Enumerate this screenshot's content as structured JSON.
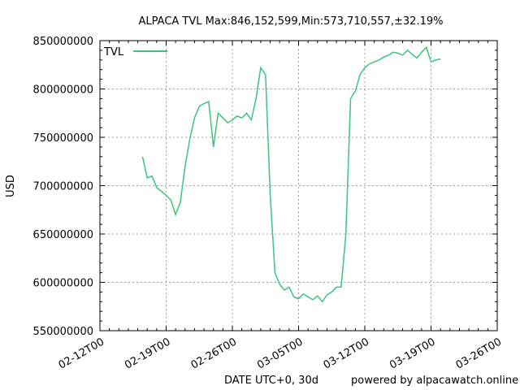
{
  "chart_data": {
    "type": "line",
    "title": "ALPACA TVL Max:846,152,599,Min:573,710,557,±32.19%",
    "xlabel": "DATE UTC+0, 30d",
    "ylabel": "USD",
    "footer": "powered by alpacawatch.online",
    "x_ticks": [
      "02-12T00",
      "02-19T00",
      "02-26T00",
      "03-05T00",
      "03-12T00",
      "03-19T00",
      "03-26T00"
    ],
    "y_ticks": [
      "550000000",
      "600000000",
      "650000000",
      "700000000",
      "750000000",
      "800000000",
      "850000000"
    ],
    "xlim": [
      "2021-02-12",
      "2021-03-26"
    ],
    "ylim": [
      550000000,
      850000000
    ],
    "grid": true,
    "legend": "top-left",
    "series": [
      {
        "name": "TVL",
        "color": "#3cc47c",
        "x": [
          "2021-02-16T12:00",
          "2021-02-17T00:00",
          "2021-02-17T12:00",
          "2021-02-18T00:00",
          "2021-02-18T12:00",
          "2021-02-19T00:00",
          "2021-02-19T12:00",
          "2021-02-20T00:00",
          "2021-02-20T12:00",
          "2021-02-21T00:00",
          "2021-02-21T12:00",
          "2021-02-22T00:00",
          "2021-02-22T12:00",
          "2021-02-23T00:00",
          "2021-02-23T12:00",
          "2021-02-24T00:00",
          "2021-02-24T12:00",
          "2021-02-25T00:00",
          "2021-02-25T12:00",
          "2021-02-26T00:00",
          "2021-02-26T12:00",
          "2021-02-27T00:00",
          "2021-02-27T12:00",
          "2021-02-28T00:00",
          "2021-02-28T12:00",
          "2021-03-01T00:00",
          "2021-03-01T12:00",
          "2021-03-02T00:00",
          "2021-03-02T12:00",
          "2021-03-03T00:00",
          "2021-03-03T12:00",
          "2021-03-04T00:00",
          "2021-03-04T12:00",
          "2021-03-05T00:00",
          "2021-03-05T12:00",
          "2021-03-06T00:00",
          "2021-03-06T12:00",
          "2021-03-07T00:00",
          "2021-03-07T12:00",
          "2021-03-08T00:00",
          "2021-03-08T12:00",
          "2021-03-09T00:00",
          "2021-03-09T12:00",
          "2021-03-10T00:00",
          "2021-03-10T12:00",
          "2021-03-11T00:00",
          "2021-03-11T12:00",
          "2021-03-12T00:00",
          "2021-03-12T12:00",
          "2021-03-13T00:00",
          "2021-03-13T12:00",
          "2021-03-14T00:00",
          "2021-03-14T12:00",
          "2021-03-15T00:00",
          "2021-03-15T12:00",
          "2021-03-16T00:00",
          "2021-03-16T12:00",
          "2021-03-17T00:00",
          "2021-03-17T12:00",
          "2021-03-18T00:00",
          "2021-03-18T12:00",
          "2021-03-19T00:00",
          "2021-03-19T12:00",
          "2021-03-20T00:00"
        ],
        "y": [
          730000000,
          708000000,
          710000000,
          698000000,
          694000000,
          690000000,
          685000000,
          670000000,
          683000000,
          720000000,
          748000000,
          770000000,
          782000000,
          785000000,
          787000000,
          740000000,
          775000000,
          770000000,
          765000000,
          768000000,
          772000000,
          770000000,
          775000000,
          768000000,
          790000000,
          822000000,
          815000000,
          690000000,
          610000000,
          598000000,
          592000000,
          595000000,
          585000000,
          583000000,
          588000000,
          585000000,
          582000000,
          586000000,
          580000000,
          587000000,
          590000000,
          595000000,
          595000000,
          650000000,
          790000000,
          798000000,
          815000000,
          822000000,
          826000000,
          828000000,
          830000000,
          833000000,
          835000000,
          838000000,
          837000000,
          835000000,
          840000000,
          836000000,
          832000000,
          838000000,
          843000000,
          828000000,
          830000000,
          831000000
        ]
      }
    ]
  }
}
